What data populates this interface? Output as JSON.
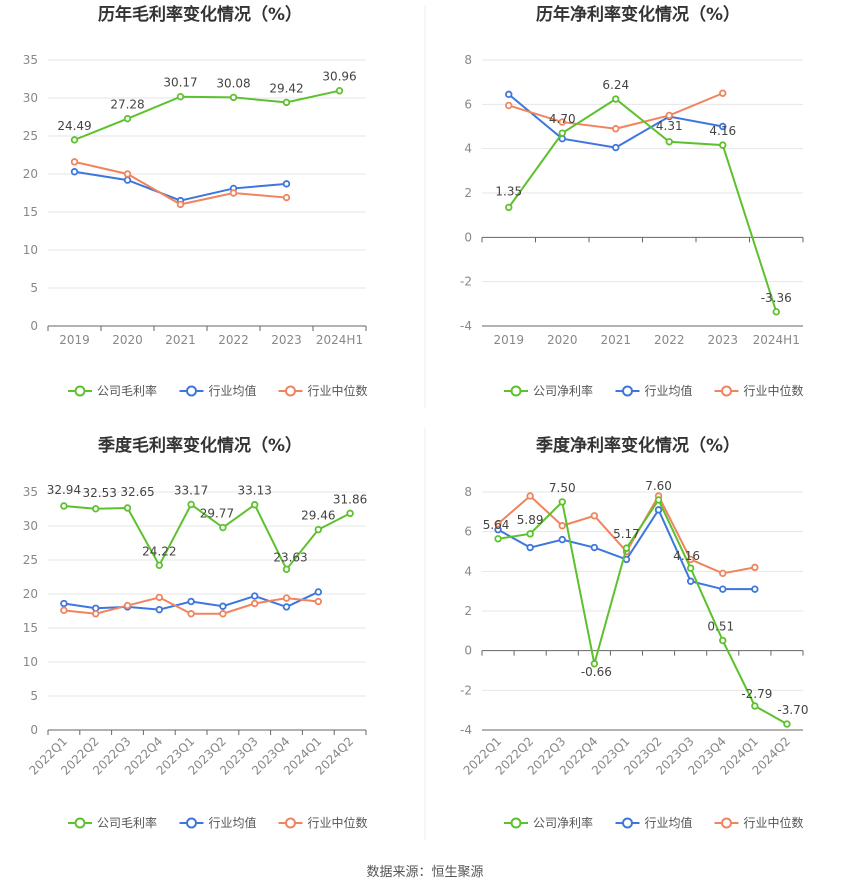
{
  "source_text": "数据来源：恒生聚源",
  "colors": {
    "company": "#5cc12d",
    "avg": "#3d76dd",
    "median": "#f0845d"
  },
  "chart_data": [
    {
      "type": "line",
      "title": "历年毛利率变化情况（%）",
      "categories": [
        "2019",
        "2020",
        "2021",
        "2022",
        "2023",
        "2024H1"
      ],
      "ylim": [
        0,
        35
      ],
      "yticks": [
        0,
        5,
        10,
        15,
        20,
        25,
        30,
        35
      ],
      "grid": true,
      "legend_position": "bottom",
      "series": [
        {
          "name": "公司毛利率",
          "key": "company",
          "labels": true,
          "values": [
            24.49,
            27.28,
            30.17,
            30.08,
            29.42,
            30.96
          ]
        },
        {
          "name": "行业均值",
          "key": "avg",
          "labels": false,
          "values": [
            20.3,
            19.2,
            16.5,
            18.1,
            18.7,
            null
          ]
        },
        {
          "name": "行业中位数",
          "key": "median",
          "labels": false,
          "values": [
            21.6,
            20.0,
            16.0,
            17.5,
            16.9,
            null
          ]
        }
      ]
    },
    {
      "type": "line",
      "title": "历年净利率变化情况（%）",
      "categories": [
        "2019",
        "2020",
        "2021",
        "2022",
        "2023",
        "2024H1"
      ],
      "ylim": [
        -4,
        8
      ],
      "yticks": [
        -4,
        -2,
        0,
        2,
        4,
        6,
        8
      ],
      "grid": true,
      "legend_position": "bottom",
      "series": [
        {
          "name": "公司净利率",
          "key": "company",
          "labels": true,
          "values": [
            1.35,
            4.7,
            6.24,
            4.31,
            4.16,
            -3.36
          ]
        },
        {
          "name": "行业均值",
          "key": "avg",
          "labels": false,
          "values": [
            6.45,
            4.45,
            4.05,
            5.45,
            5.0,
            null
          ]
        },
        {
          "name": "行业中位数",
          "key": "median",
          "labels": false,
          "values": [
            5.95,
            5.2,
            4.9,
            5.5,
            6.5,
            null
          ]
        }
      ]
    },
    {
      "type": "line",
      "title": "季度毛利率变化情况（%）",
      "categories": [
        "2022Q1",
        "2022Q2",
        "2022Q3",
        "2022Q4",
        "2023Q1",
        "2023Q2",
        "2023Q3",
        "2023Q4",
        "2024Q1",
        "2024Q2"
      ],
      "ylim": [
        0,
        35
      ],
      "yticks": [
        0,
        5,
        10,
        15,
        20,
        25,
        30,
        35
      ],
      "grid": true,
      "legend_position": "bottom",
      "series": [
        {
          "name": "公司毛利率",
          "key": "company",
          "labels": true,
          "values": [
            32.94,
            32.53,
            32.65,
            24.22,
            33.17,
            29.77,
            33.13,
            23.63,
            29.46,
            31.86
          ]
        },
        {
          "name": "行业均值",
          "key": "avg",
          "labels": false,
          "values": [
            18.6,
            17.9,
            18.1,
            17.7,
            18.9,
            18.2,
            19.7,
            18.1,
            20.3,
            null
          ]
        },
        {
          "name": "行业中位数",
          "key": "median",
          "labels": false,
          "values": [
            17.6,
            17.1,
            18.3,
            19.5,
            17.1,
            17.1,
            18.6,
            19.4,
            18.9,
            null
          ]
        }
      ]
    },
    {
      "type": "line",
      "title": "季度净利率变化情况（%）",
      "categories": [
        "2022Q1",
        "2022Q2",
        "2022Q3",
        "2022Q4",
        "2023Q1",
        "2023Q2",
        "2023Q3",
        "2023Q4",
        "2024Q1",
        "2024Q2"
      ],
      "ylim": [
        -4,
        8
      ],
      "yticks": [
        -4,
        -2,
        0,
        2,
        4,
        6,
        8
      ],
      "grid": true,
      "legend_position": "bottom",
      "series": [
        {
          "name": "公司净利率",
          "key": "company",
          "labels": true,
          "values": [
            5.64,
            5.89,
            7.5,
            -0.66,
            5.17,
            7.6,
            4.16,
            0.51,
            -2.79,
            -3.7
          ]
        },
        {
          "name": "行业均值",
          "key": "avg",
          "labels": false,
          "values": [
            6.1,
            5.2,
            5.6,
            5.2,
            4.6,
            7.1,
            3.5,
            3.1,
            3.1,
            null
          ]
        },
        {
          "name": "行业中位数",
          "key": "median",
          "labels": false,
          "values": [
            6.4,
            7.8,
            6.3,
            6.8,
            5.0,
            7.8,
            4.6,
            3.9,
            4.2,
            null
          ]
        }
      ]
    }
  ]
}
